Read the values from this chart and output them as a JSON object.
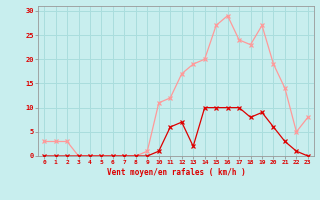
{
  "x": [
    0,
    1,
    2,
    3,
    4,
    5,
    6,
    7,
    8,
    9,
    10,
    11,
    12,
    13,
    14,
    15,
    16,
    17,
    18,
    19,
    20,
    21,
    22,
    23
  ],
  "wind_avg": [
    0,
    0,
    0,
    0,
    0,
    0,
    0,
    0,
    0,
    0,
    1,
    6,
    7,
    2,
    10,
    10,
    10,
    10,
    8,
    9,
    6,
    3,
    1,
    0
  ],
  "wind_gust": [
    3,
    3,
    3,
    0,
    0,
    0,
    0,
    0,
    0,
    1,
    11,
    12,
    17,
    19,
    20,
    27,
    29,
    24,
    23,
    27,
    19,
    14,
    5,
    8
  ],
  "bg_color": "#c8eeee",
  "grid_color": "#aadddd",
  "line_avg_color": "#dd0000",
  "line_gust_color": "#ff9999",
  "xlabel": "Vent moyen/en rafales ( km/h )",
  "ylabel_ticks": [
    0,
    5,
    10,
    15,
    20,
    25,
    30
  ],
  "ylim": [
    0,
    31
  ],
  "xlim": [
    -0.5,
    23.5
  ]
}
